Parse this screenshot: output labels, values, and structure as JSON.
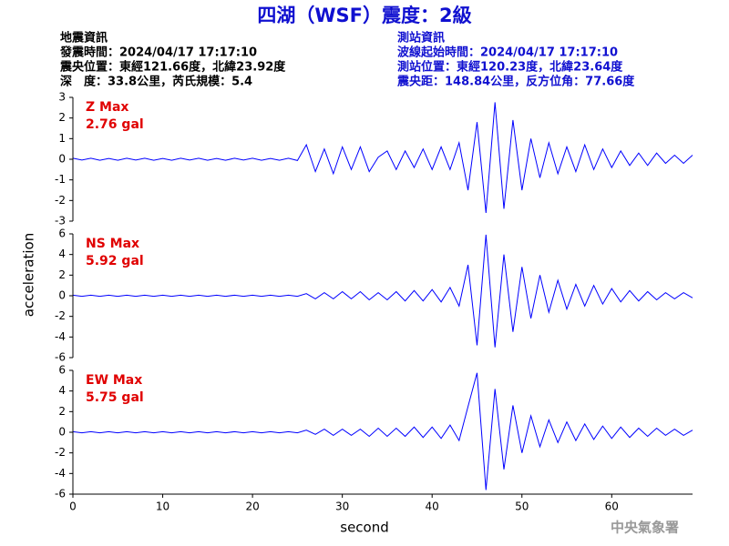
{
  "chart_data": {
    "type": "line",
    "title": "四湖（WSF）震度：2級",
    "info_left": [
      "地震資訊",
      "發震時間：2024/04/17 17:17:10",
      "震央位置：東經121.66度，北緯23.92度",
      "深　度：33.8公里，芮氏規模：5.4"
    ],
    "info_right": [
      "測站資訊",
      "波線起始時間：2024/04/17 17:17:10",
      "測站位置：東經120.23度，北緯23.64度",
      "震央距：148.84公里，反方位角：77.66度"
    ],
    "xlabel": "second",
    "ylabel": "acceleration",
    "credit": "中央氣象署",
    "x": [
      0,
      1,
      2,
      3,
      4,
      5,
      6,
      7,
      8,
      9,
      10,
      11,
      12,
      13,
      14,
      15,
      16,
      17,
      18,
      19,
      20,
      21,
      22,
      23,
      24,
      25,
      26,
      27,
      28,
      29,
      30,
      31,
      32,
      33,
      34,
      35,
      36,
      37,
      38,
      39,
      40,
      41,
      42,
      43,
      44,
      45,
      46,
      47,
      48,
      49,
      50,
      51,
      52,
      53,
      54,
      55,
      56,
      57,
      58,
      59,
      60,
      61,
      62,
      63,
      64,
      65,
      66,
      67,
      68,
      69
    ],
    "xlim": [
      0,
      69
    ],
    "xticks": [
      0,
      10,
      20,
      30,
      40,
      50,
      60
    ],
    "series": [
      {
        "name": "Z Max",
        "annotation": "2.76 gal",
        "color": "#0000ff",
        "ylim": [
          -3,
          3
        ],
        "yticks": [
          -3,
          -2,
          -1,
          0,
          1,
          2,
          3
        ],
        "values": [
          0.05,
          -0.04,
          0.05,
          -0.05,
          0.04,
          -0.05,
          0.05,
          -0.04,
          0.05,
          -0.05,
          0.04,
          -0.05,
          0.05,
          -0.04,
          0.05,
          -0.05,
          0.04,
          -0.05,
          0.05,
          -0.04,
          0.05,
          -0.05,
          0.04,
          -0.05,
          0.05,
          -0.06,
          0.7,
          -0.6,
          0.5,
          -0.7,
          0.6,
          -0.5,
          0.6,
          -0.6,
          0.1,
          0.4,
          -0.5,
          0.4,
          -0.4,
          0.5,
          -0.5,
          0.6,
          -0.5,
          0.8,
          -1.5,
          1.8,
          -2.6,
          2.76,
          -2.4,
          1.9,
          -1.5,
          1.0,
          -0.9,
          0.8,
          -0.7,
          0.6,
          -0.6,
          0.7,
          -0.5,
          0.5,
          -0.4,
          0.4,
          -0.3,
          0.3,
          -0.3,
          0.3,
          -0.2,
          0.2,
          -0.2,
          0.2
        ]
      },
      {
        "name": "NS Max",
        "annotation": "5.92 gal",
        "color": "#0000ff",
        "ylim": [
          -6,
          6
        ],
        "yticks": [
          -6,
          -4,
          -2,
          0,
          2,
          4,
          6
        ],
        "values": [
          0.05,
          -0.05,
          0.05,
          -0.05,
          0.05,
          -0.05,
          0.05,
          -0.05,
          0.05,
          -0.05,
          0.05,
          -0.05,
          0.05,
          -0.05,
          0.05,
          -0.05,
          0.05,
          -0.05,
          0.05,
          -0.05,
          0.05,
          -0.05,
          0.05,
          -0.05,
          0.05,
          -0.05,
          0.2,
          -0.3,
          0.3,
          -0.3,
          0.4,
          -0.3,
          0.4,
          -0.4,
          0.3,
          -0.4,
          0.4,
          -0.5,
          0.5,
          -0.5,
          0.6,
          -0.6,
          0.8,
          -1.0,
          3.0,
          -4.8,
          5.92,
          -5.0,
          4.0,
          -3.5,
          2.8,
          -2.2,
          2.0,
          -1.6,
          1.5,
          -1.3,
          1.1,
          -1.0,
          1.0,
          -0.8,
          0.7,
          -0.6,
          0.5,
          -0.5,
          0.4,
          -0.4,
          0.3,
          -0.3,
          0.3,
          -0.2
        ]
      },
      {
        "name": "EW Max",
        "annotation": "5.75 gal",
        "color": "#0000ff",
        "ylim": [
          -6,
          6
        ],
        "yticks": [
          -6,
          -4,
          -2,
          0,
          2,
          4,
          6
        ],
        "values": [
          0.05,
          -0.05,
          0.05,
          -0.05,
          0.05,
          -0.05,
          0.05,
          -0.05,
          0.05,
          -0.05,
          0.05,
          -0.05,
          0.05,
          -0.05,
          0.05,
          -0.05,
          0.05,
          -0.05,
          0.05,
          -0.05,
          0.05,
          -0.05,
          0.05,
          -0.05,
          0.05,
          -0.05,
          0.2,
          -0.2,
          0.3,
          -0.3,
          0.3,
          -0.3,
          0.3,
          -0.4,
          0.4,
          -0.4,
          0.4,
          -0.4,
          0.5,
          -0.5,
          0.5,
          -0.6,
          0.7,
          -0.8,
          2.5,
          5.75,
          -5.6,
          4.2,
          -3.6,
          2.6,
          -2.0,
          1.6,
          -1.4,
          1.2,
          -1.0,
          1.0,
          -0.8,
          0.8,
          -0.7,
          0.6,
          -0.6,
          0.5,
          -0.5,
          0.4,
          -0.4,
          0.4,
          -0.3,
          0.3,
          -0.3,
          0.2
        ]
      }
    ]
  }
}
